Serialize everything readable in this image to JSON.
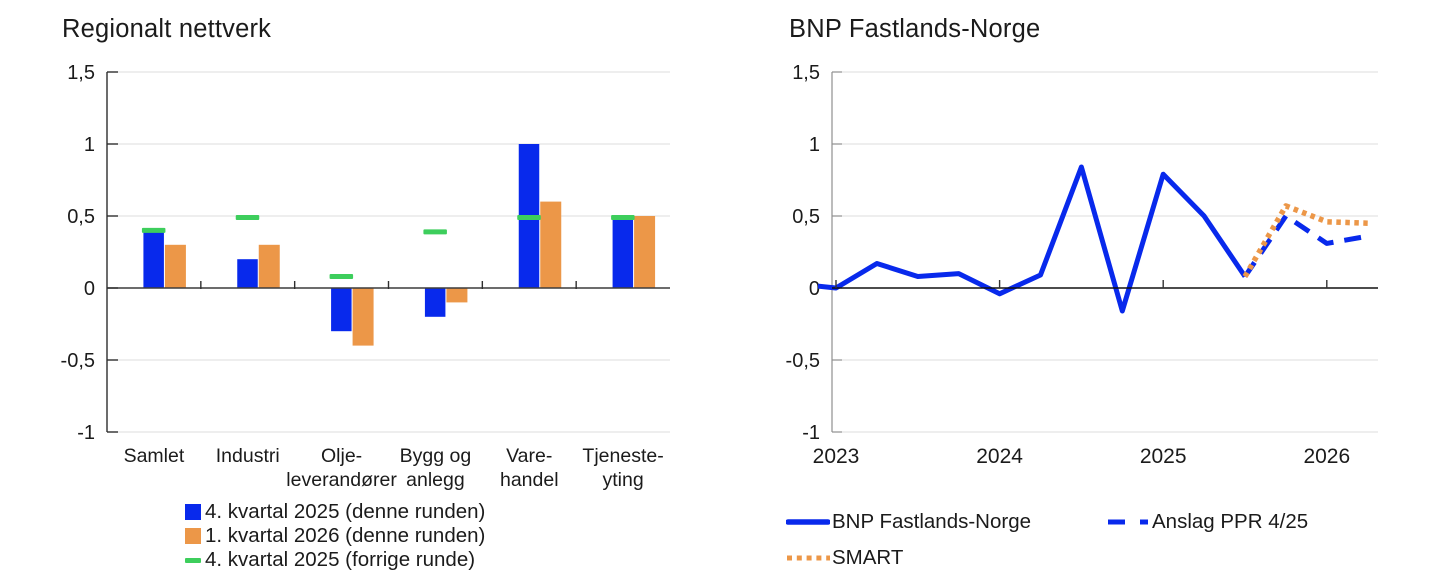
{
  "page": {
    "background": "#ffffff",
    "text_color": "#1b1b1b"
  },
  "chart_data": [
    {
      "type": "bar",
      "title": "Regionalt nettverk",
      "ylim": [
        -1,
        1.5
      ],
      "grid": "horizontal",
      "legend_position": "bottom",
      "y_ticks": [
        "1,5",
        "1",
        "0,5",
        "0",
        "-0,5",
        "-1"
      ],
      "y_tick_values": [
        1.5,
        1,
        0.5,
        0,
        -0.5,
        -1
      ],
      "categories": [
        "Samlet",
        "Industri",
        "Olje-leverandører",
        "Bygg og anlegg",
        "Varehandel",
        "Tjenesteyting"
      ],
      "category_label_lines": [
        [
          "Samlet"
        ],
        [
          "Industri"
        ],
        [
          "Olje-",
          "leverandører"
        ],
        [
          "Bygg og",
          "anlegg"
        ],
        [
          "Vare-",
          "handel"
        ],
        [
          "Tjeneste-",
          "yting"
        ]
      ],
      "series": [
        {
          "name": "4. kvartal 2025 (denne runden)",
          "type": "bar",
          "color": "#0829EC",
          "values": [
            0.39,
            0.2,
            -0.3,
            -0.2,
            1.0,
            0.5
          ]
        },
        {
          "name": "1. kvartal 2026 (denne runden)",
          "type": "bar",
          "color": "#EC9748",
          "values": [
            0.3,
            0.3,
            -0.4,
            -0.1,
            0.6,
            0.5
          ]
        },
        {
          "name": "4. kvartal 2025 (forrige runde)",
          "type": "tick-marker",
          "color": "#3DCE5C",
          "values": [
            0.4,
            0.49,
            0.08,
            0.39,
            0.49,
            0.49
          ]
        }
      ]
    },
    {
      "type": "line",
      "title": "BNP Fastlands-Norge",
      "ylim": [
        -1,
        1.5
      ],
      "grid": "horizontal",
      "legend_position": "bottom",
      "y_ticks": [
        "1,5",
        "1",
        "0,5",
        "0",
        "-0,5",
        "-1"
      ],
      "y_tick_values": [
        1.5,
        1,
        0.5,
        0,
        -0.5,
        -1
      ],
      "x_ticks": [
        "2023",
        "2024",
        "2025",
        "2026"
      ],
      "x_unit": "quarter",
      "series": [
        {
          "name": "BNP Fastlands-Norge",
          "style": "solid",
          "color": "#0829EC",
          "start_quarter": "2022 Q4",
          "start_index": -1,
          "values": [
            0.03,
            0.0,
            0.17,
            0.08,
            0.1,
            -0.04,
            0.09,
            0.84,
            -0.16,
            0.79,
            0.5,
            0.08
          ]
        },
        {
          "name": "Anslag PPR 4/25",
          "style": "dashed",
          "color": "#0829EC",
          "start_quarter": "2025 Q3",
          "start_index": 10,
          "values": [
            0.08,
            0.5,
            0.31,
            0.36
          ]
        },
        {
          "name": "SMART",
          "style": "dotted",
          "color": "#EC9748",
          "start_quarter": "2025 Q3",
          "start_index": 10,
          "values": [
            0.08,
            0.57,
            0.46,
            0.45
          ]
        }
      ]
    }
  ]
}
